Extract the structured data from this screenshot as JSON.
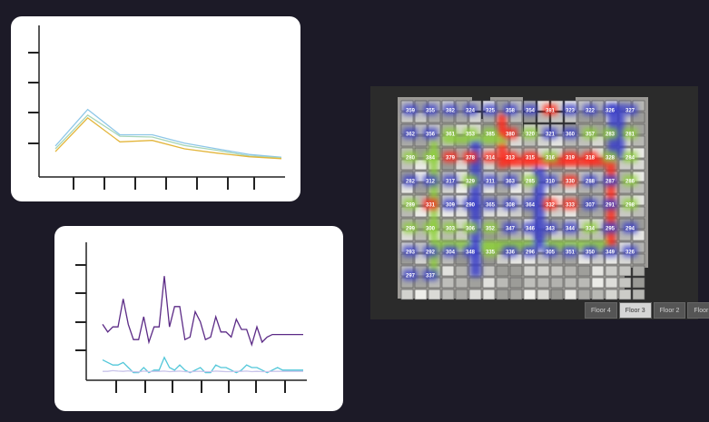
{
  "charts": {
    "chart_data": [
      {
        "type": "line",
        "x": [
          1,
          2,
          3,
          4,
          5,
          6,
          7,
          8
        ],
        "ylim": [
          0,
          5
        ],
        "series": [
          {
            "color": "#8ec7e8",
            "values": [
              1.1,
              2.4,
              1.5,
              1.5,
              1.2,
              1.0,
              0.8,
              0.7
            ]
          },
          {
            "color": "#a8d6b8",
            "values": [
              1.0,
              2.2,
              1.45,
              1.42,
              1.12,
              0.95,
              0.75,
              0.68
            ]
          },
          {
            "color": "#e3b53a",
            "values": [
              0.9,
              2.1,
              1.25,
              1.3,
              1.0,
              0.85,
              0.72,
              0.65
            ]
          }
        ]
      },
      {
        "type": "line",
        "x": [
          1,
          2,
          3,
          4,
          5,
          6,
          7,
          8,
          9,
          10,
          11,
          12,
          13,
          14,
          15,
          16,
          17,
          18,
          19,
          20,
          21,
          22,
          23,
          24,
          25,
          26,
          27,
          28,
          29,
          30,
          31,
          32,
          33,
          34,
          35,
          36,
          37,
          38,
          39,
          40
        ],
        "ylim": [
          0,
          5
        ],
        "series": [
          {
            "color": "#5b2a86",
            "values": [
              2.2,
              1.9,
              2.1,
              2.1,
              3.2,
              2.2,
              1.6,
              1.6,
              2.5,
              1.5,
              2.1,
              2.1,
              4.1,
              2.1,
              2.9,
              2.9,
              1.6,
              1.7,
              2.7,
              2.3,
              1.6,
              1.7,
              2.5,
              1.9,
              1.9,
              1.7,
              2.4,
              2.0,
              2.0,
              1.4,
              2.1,
              1.5,
              1.7,
              1.8,
              1.8,
              1.8,
              1.8,
              1.8,
              1.8,
              1.8
            ]
          },
          {
            "color": "#52c7d9",
            "values": [
              0.8,
              0.7,
              0.6,
              0.6,
              0.7,
              0.5,
              0.3,
              0.3,
              0.5,
              0.3,
              0.4,
              0.4,
              0.9,
              0.5,
              0.4,
              0.6,
              0.4,
              0.3,
              0.4,
              0.5,
              0.3,
              0.3,
              0.6,
              0.5,
              0.5,
              0.4,
              0.3,
              0.4,
              0.6,
              0.5,
              0.5,
              0.4,
              0.3,
              0.4,
              0.5,
              0.4,
              0.4,
              0.4,
              0.4,
              0.4
            ]
          },
          {
            "color": "#c9c4ea",
            "values": [
              0.35,
              0.35,
              0.38,
              0.36,
              0.35,
              0.37,
              0.34,
              0.33,
              0.36,
              0.34,
              0.35,
              0.35,
              0.36,
              0.34,
              0.35,
              0.36,
              0.34,
              0.33,
              0.35,
              0.35,
              0.34,
              0.34,
              0.36,
              0.35,
              0.34,
              0.34,
              0.35,
              0.35,
              0.36,
              0.34,
              0.35,
              0.34,
              0.34,
              0.35,
              0.35,
              0.35,
              0.35,
              0.35,
              0.35,
              0.35
            ]
          }
        ]
      }
    ]
  },
  "floorplan": {
    "heat_colors": {
      "low": "#3b3fc9",
      "mid": "#8ed03a",
      "high": "#ff2a1a"
    },
    "rooms": [
      {
        "label": "359",
        "level": "low"
      },
      {
        "label": "355",
        "level": "low"
      },
      {
        "label": "382",
        "level": "low"
      },
      {
        "label": "324",
        "level": "low"
      },
      {
        "label": "325",
        "level": "low"
      },
      {
        "label": "358",
        "level": "low"
      },
      {
        "label": "354",
        "level": "low"
      },
      {
        "label": "381",
        "level": "high"
      },
      {
        "label": "323",
        "level": "low"
      },
      {
        "label": "322",
        "level": "low"
      },
      {
        "label": "326",
        "level": "low"
      },
      {
        "label": "327",
        "level": "low"
      },
      {
        "label": "362",
        "level": "low"
      },
      {
        "label": "356",
        "level": "low"
      },
      {
        "label": "361",
        "level": "mid"
      },
      {
        "label": "353",
        "level": "mid"
      },
      {
        "label": "385",
        "level": "mid"
      },
      {
        "label": "380",
        "level": "high"
      },
      {
        "label": "320",
        "level": "mid"
      },
      {
        "label": "321",
        "level": "low"
      },
      {
        "label": "360",
        "level": "low"
      },
      {
        "label": "357",
        "level": "mid"
      },
      {
        "label": "283",
        "level": "mid"
      },
      {
        "label": "281",
        "level": "mid"
      },
      {
        "label": "280",
        "level": "mid"
      },
      {
        "label": "384",
        "level": "mid"
      },
      {
        "label": "379",
        "level": "high"
      },
      {
        "label": "378",
        "level": "high"
      },
      {
        "label": "314",
        "level": "high"
      },
      {
        "label": "313",
        "level": "high"
      },
      {
        "label": "315",
        "level": "high"
      },
      {
        "label": "316",
        "level": "mid"
      },
      {
        "label": "319",
        "level": "high"
      },
      {
        "label": "318",
        "level": "high"
      },
      {
        "label": "328",
        "level": "mid"
      },
      {
        "label": "284",
        "level": "mid"
      },
      {
        "label": "282",
        "level": "low"
      },
      {
        "label": "312",
        "level": "low"
      },
      {
        "label": "317",
        "level": "low"
      },
      {
        "label": "329",
        "level": "mid"
      },
      {
        "label": "311",
        "level": "low"
      },
      {
        "label": "363",
        "level": "low"
      },
      {
        "label": "285",
        "level": "mid"
      },
      {
        "label": "310",
        "level": "low"
      },
      {
        "label": "330",
        "level": "high"
      },
      {
        "label": "288",
        "level": "low"
      },
      {
        "label": "287",
        "level": "low"
      },
      {
        "label": "286",
        "level": "mid"
      },
      {
        "label": "289",
        "level": "mid"
      },
      {
        "label": "331",
        "level": "high"
      },
      {
        "label": "309",
        "level": "low"
      },
      {
        "label": "290",
        "level": "low"
      },
      {
        "label": "365",
        "level": "low"
      },
      {
        "label": "308",
        "level": "low"
      },
      {
        "label": "364",
        "level": "low"
      },
      {
        "label": "332",
        "level": "high"
      },
      {
        "label": "333",
        "level": "high"
      },
      {
        "label": "307",
        "level": "low"
      },
      {
        "label": "291",
        "level": "low"
      },
      {
        "label": "298",
        "level": "mid"
      },
      {
        "label": "299",
        "level": "mid"
      },
      {
        "label": "300",
        "level": "mid"
      },
      {
        "label": "303",
        "level": "mid"
      },
      {
        "label": "306",
        "level": "mid"
      },
      {
        "label": "352",
        "level": "mid"
      },
      {
        "label": "347",
        "level": "low"
      },
      {
        "label": "346",
        "level": "low"
      },
      {
        "label": "343",
        "level": "low"
      },
      {
        "label": "344",
        "level": "low"
      },
      {
        "label": "334",
        "level": "mid"
      },
      {
        "label": "295",
        "level": "low"
      },
      {
        "label": "294",
        "level": "low"
      },
      {
        "label": "293",
        "level": "low"
      },
      {
        "label": "292",
        "level": "low"
      },
      {
        "label": "304",
        "level": "low"
      },
      {
        "label": "348",
        "level": "low"
      },
      {
        "label": "335",
        "level": "mid"
      },
      {
        "label": "336",
        "level": "low"
      },
      {
        "label": "296",
        "level": "low"
      },
      {
        "label": "305",
        "level": "low"
      },
      {
        "label": "351",
        "level": "low"
      },
      {
        "label": "350",
        "level": "low"
      },
      {
        "label": "349",
        "level": "low"
      },
      {
        "label": "326",
        "level": "low"
      },
      {
        "label": "297",
        "level": "low"
      },
      {
        "label": "337",
        "level": "low"
      }
    ]
  },
  "floor_tabs": [
    {
      "label": "Floor 4",
      "active": false
    },
    {
      "label": "Floor 3",
      "active": true
    },
    {
      "label": "Floor 2",
      "active": false
    },
    {
      "label": "Floor",
      "active": false
    }
  ]
}
